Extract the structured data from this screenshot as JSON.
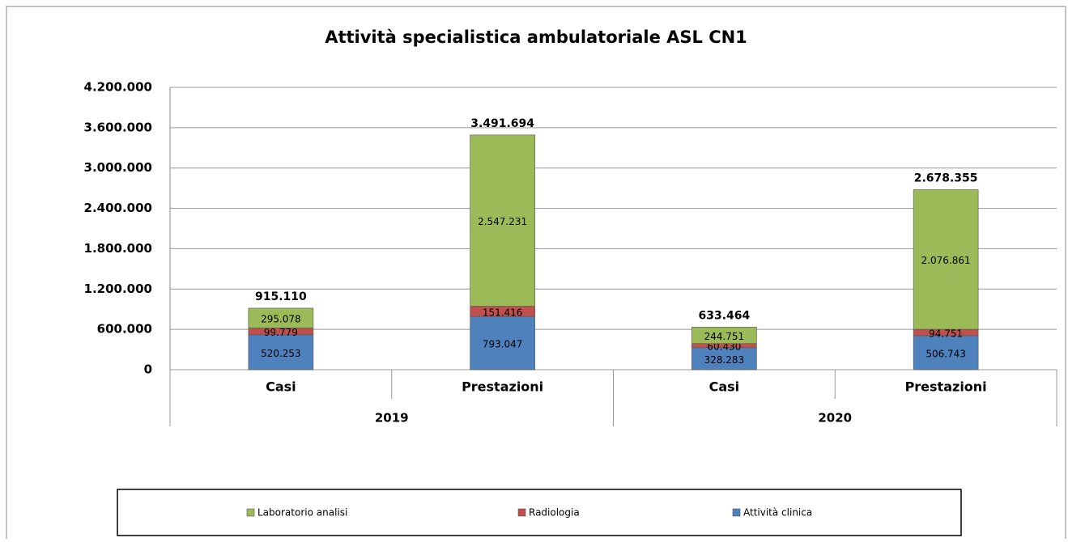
{
  "chart_data": {
    "type": "stacked_bar",
    "title": "Attività specialistica ambulatoriale ASL CN1",
    "categories": [
      "Casi",
      "Prestazioni",
      "Casi",
      "Prestazioni"
    ],
    "groups": [
      "2019",
      "2020"
    ],
    "series": [
      {
        "name": "Attività clinica",
        "color": "#4f81bd",
        "values": [
          520253,
          793047,
          328283,
          506743
        ],
        "value_labels": [
          "520.253",
          "793.047",
          "328.283",
          "506.743"
        ]
      },
      {
        "name": "Radiologia",
        "color": "#c0504d",
        "values": [
          99779,
          151416,
          60430,
          94751
        ],
        "value_labels": [
          "99.779",
          "151.416",
          "60.430",
          "94.751"
        ]
      },
      {
        "name": "Laboratorio analisi",
        "color": "#9bbb59",
        "values": [
          295078,
          2547231,
          244751,
          2076861
        ],
        "value_labels": [
          "295.078",
          "2.547.231",
          "244.751",
          "2.076.861"
        ]
      }
    ],
    "totals": {
      "values": [
        915110,
        3491694,
        633464,
        2678355
      ],
      "value_labels": [
        "915.110",
        "3.491.694",
        "633.464",
        "2.678.355"
      ]
    },
    "ylim": [
      0,
      4200000
    ],
    "yticks": [
      0,
      {
        "value": 600000,
        "label": "600.000"
      },
      {
        "value": 1200000,
        "label": "1.200.000"
      },
      {
        "value": 1800000,
        "label": "1.800.000"
      },
      {
        "value": 2400000,
        "label": "2.400.000"
      },
      {
        "value": 3000000,
        "label": "3.000.000"
      },
      {
        "value": 3600000,
        "label": "3.600.000"
      },
      {
        "value": 4200000,
        "label": "4.200.000"
      }
    ],
    "grid": true,
    "legend": "bottom"
  }
}
